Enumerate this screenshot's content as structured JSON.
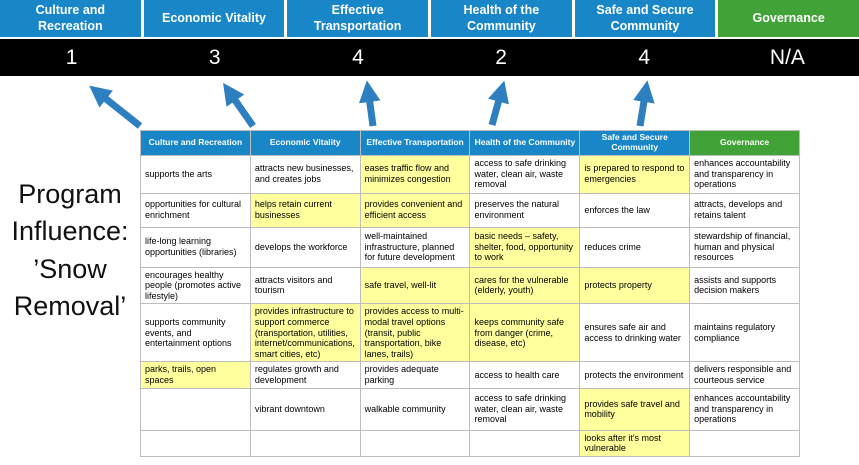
{
  "title": {
    "text": "Program Influence: ’Snow Removal’",
    "lines": [
      "Program",
      "Influence:",
      "’Snow",
      "Removal’"
    ]
  },
  "colors": {
    "blue": "#1886c7",
    "green": "#41a337",
    "highlight": "#ffff9e",
    "arrow": "#2e7fc0",
    "scorebg": "#000000"
  },
  "scoreboard": {
    "columns": [
      {
        "label": "Culture and Recreation",
        "score": "1",
        "theme": "blue"
      },
      {
        "label": "Economic Vitality",
        "score": "3",
        "theme": "blue"
      },
      {
        "label": "Effective Transportation",
        "score": "4",
        "theme": "blue"
      },
      {
        "label": "Health of the Community",
        "score": "2",
        "theme": "blue"
      },
      {
        "label": "Safe and Secure Community",
        "score": "4",
        "theme": "blue"
      },
      {
        "label": "Governance",
        "score": "N/A",
        "theme": "green"
      }
    ]
  },
  "matrix": {
    "headers": [
      {
        "label": "Culture and Recreation",
        "theme": "blue"
      },
      {
        "label": "Economic Vitality",
        "theme": "blue"
      },
      {
        "label": "Effective Transportation",
        "theme": "blue"
      },
      {
        "label": "Health of the Community",
        "theme": "blue"
      },
      {
        "label": "Safe and Secure Community",
        "theme": "blue"
      },
      {
        "label": "Governance",
        "theme": "green"
      }
    ],
    "rows": [
      [
        {
          "t": "supports the arts",
          "h": false
        },
        {
          "t": "attracts new businesses, and creates jobs",
          "h": false
        },
        {
          "t": "eases traffic flow and minimizes congestion",
          "h": true
        },
        {
          "t": "access to safe drinking water, clean air, waste removal",
          "h": false
        },
        {
          "t": "is prepared to respond to emergencies",
          "h": true
        },
        {
          "t": "enhances accountability and transparency in operations",
          "h": false
        }
      ],
      [
        {
          "t": "opportunities for cultural enrichment",
          "h": false
        },
        {
          "t": "helps retain current businesses",
          "h": true
        },
        {
          "t": "provides convenient and efficient access",
          "h": true
        },
        {
          "t": "preserves the natural environment",
          "h": false
        },
        {
          "t": "enforces the law",
          "h": false
        },
        {
          "t": "attracts, develops and retains talent",
          "h": false
        }
      ],
      [
        {
          "t": "life-long learning opportunities (libraries)",
          "h": false
        },
        {
          "t": "develops the workforce",
          "h": false
        },
        {
          "t": "well-maintained infrastructure, planned for future development",
          "h": false
        },
        {
          "t": "basic needs – safety, shelter, food, opportunity to work",
          "h": true
        },
        {
          "t": "reduces crime",
          "h": false
        },
        {
          "t": "stewardship of financial, human and physical resources",
          "h": false
        }
      ],
      [
        {
          "t": "encourages healthy people (promotes active lifestyle)",
          "h": false
        },
        {
          "t": "attracts visitors and tourism",
          "h": false
        },
        {
          "t": "safe travel, well-lit",
          "h": true
        },
        {
          "t": "cares for the vulnerable (elderly, youth)",
          "h": true
        },
        {
          "t": "protects property",
          "h": true
        },
        {
          "t": "assists and supports decision makers",
          "h": false
        }
      ],
      [
        {
          "t": "supports community events, and entertainment options",
          "h": false
        },
        {
          "t": "provides infrastructure to support commerce (transportation, utilities, internet/communications, smart cities, etc)",
          "h": true
        },
        {
          "t": "provides access to multi-modal travel options (transit, public transportation, bike lanes, trails)",
          "h": true
        },
        {
          "t": "keeps community safe from danger (crime, disease, etc)",
          "h": true
        },
        {
          "t": "ensures safe air and access to drinking water",
          "h": false
        },
        {
          "t": "maintains regulatory compliance",
          "h": false
        }
      ],
      [
        {
          "t": "parks, trails, open spaces",
          "h": true
        },
        {
          "t": "regulates growth and development",
          "h": false
        },
        {
          "t": "provides adequate parking",
          "h": false
        },
        {
          "t": "access to health care",
          "h": false
        },
        {
          "t": "protects the environment",
          "h": false
        },
        {
          "t": "delivers responsible and courteous service",
          "h": false
        }
      ],
      [
        {
          "t": "",
          "h": false
        },
        {
          "t": "vibrant downtown",
          "h": false
        },
        {
          "t": "walkable community",
          "h": false
        },
        {
          "t": "access to safe drinking water, clean air, waste removal",
          "h": false
        },
        {
          "t": "provides safe travel and mobility",
          "h": true
        },
        {
          "t": "enhances accountability and transparency in operations",
          "h": false
        }
      ],
      [
        {
          "t": "",
          "h": false
        },
        {
          "t": "",
          "h": false
        },
        {
          "t": "",
          "h": false
        },
        {
          "t": "",
          "h": false
        },
        {
          "t": "looks after it's most vulnerable",
          "h": true
        },
        {
          "t": "",
          "h": false
        }
      ]
    ]
  }
}
